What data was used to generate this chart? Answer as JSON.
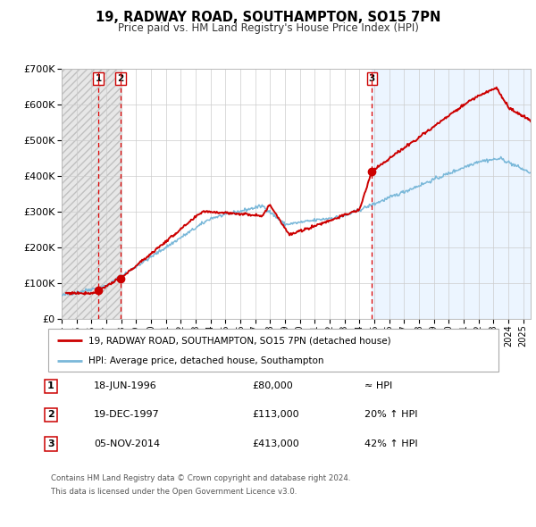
{
  "title": "19, RADWAY ROAD, SOUTHAMPTON, SO15 7PN",
  "subtitle": "Price paid vs. HM Land Registry's House Price Index (HPI)",
  "legend_line1": "19, RADWAY ROAD, SOUTHAMPTON, SO15 7PN (detached house)",
  "legend_line2": "HPI: Average price, detached house, Southampton",
  "footer1": "Contains HM Land Registry data © Crown copyright and database right 2024.",
  "footer2": "This data is licensed under the Open Government Licence v3.0.",
  "sales": [
    {
      "label": "1",
      "date": "18-JUN-1996",
      "price": 80000,
      "x": 1996.46,
      "note": "≈ HPI"
    },
    {
      "label": "2",
      "date": "19-DEC-1997",
      "price": 113000,
      "x": 1997.96,
      "note": "20% ↑ HPI"
    },
    {
      "label": "3",
      "date": "05-NOV-2014",
      "price": 413000,
      "x": 2014.84,
      "note": "42% ↑ HPI"
    }
  ],
  "vline_color": "#dd0000",
  "sale_dot_color": "#cc0000",
  "hpi_line_color": "#7ab8d9",
  "price_line_color": "#cc0000",
  "grid_color": "#cccccc",
  "ylim": [
    0,
    700000
  ],
  "xlim": [
    1994,
    2025.5
  ],
  "yticks": [
    0,
    100000,
    200000,
    300000,
    400000,
    500000,
    600000,
    700000
  ]
}
